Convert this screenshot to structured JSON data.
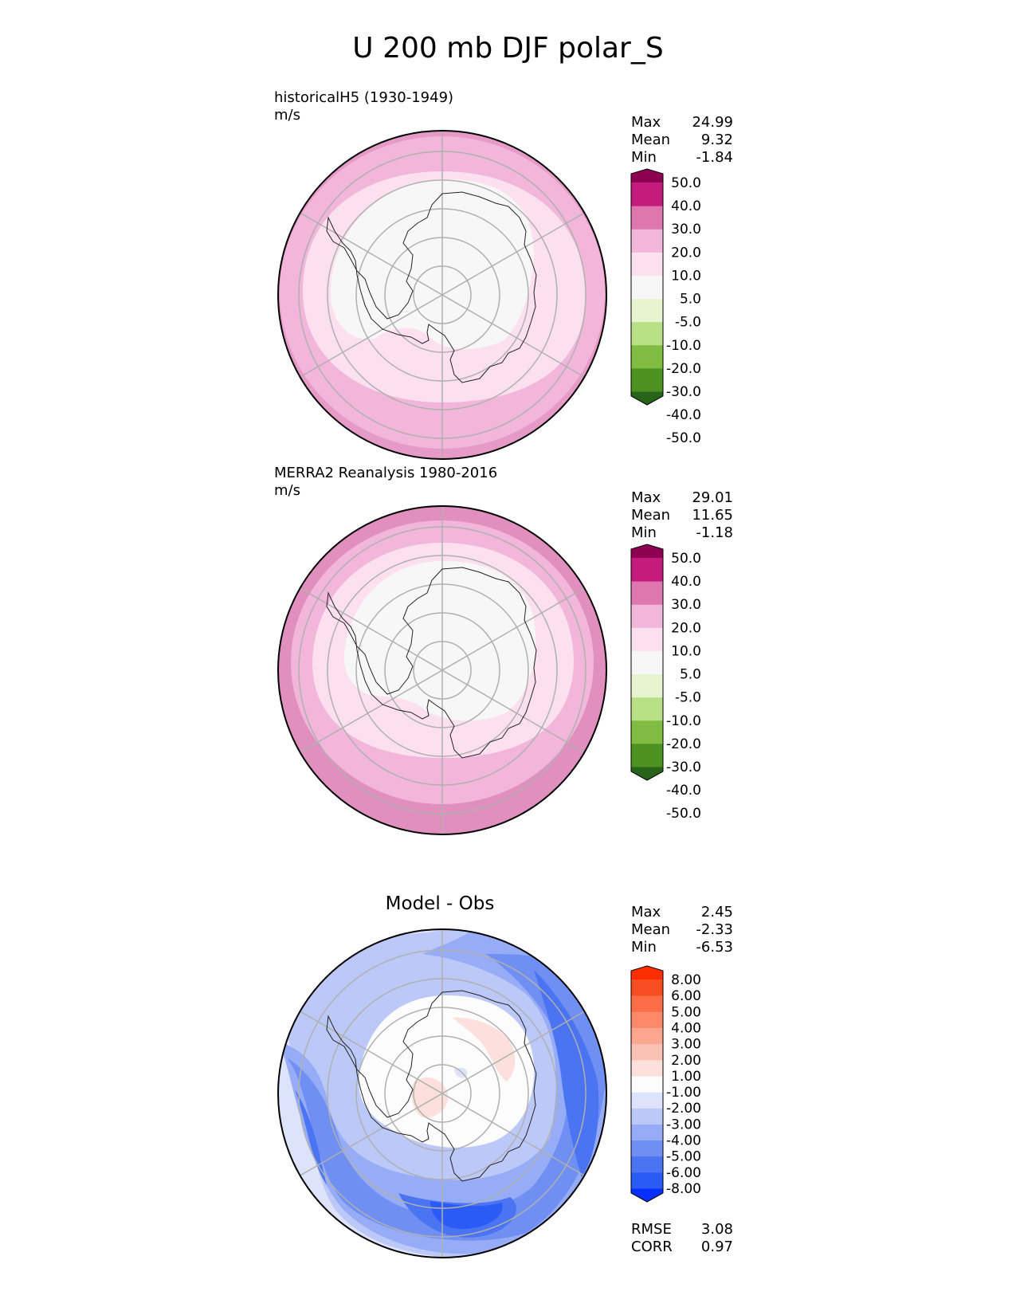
{
  "figure": {
    "title": "U 200 mb DJF polar_S"
  },
  "panels": [
    {
      "label": "historicalH5 (1930-1949)",
      "units": "m/s",
      "stats": [
        {
          "label": "Max",
          "value": "24.99"
        },
        {
          "label": "Mean",
          "value": "9.32"
        },
        {
          "label": "Min",
          "value": "-1.84"
        }
      ],
      "colorbar": {
        "colors": [
          "#276419",
          "#4d9221",
          "#7fbc41",
          "#b8e186",
          "#e6f5d0",
          "#f7f7f7",
          "#fde0ef",
          "#f1b6da",
          "#de77ae",
          "#c51b7d",
          "#8e0152"
        ],
        "ticks": [
          "50.0",
          "40.0",
          "30.0",
          "20.0",
          "10.0",
          "5.0",
          "-5.0",
          "-10.0",
          "-20.0",
          "-30.0",
          "-40.0",
          "-50.0"
        ]
      }
    },
    {
      "label": "MERRA2 Reanalysis 1980-2016",
      "units": "m/s",
      "stats": [
        {
          "label": "Max",
          "value": "29.01"
        },
        {
          "label": "Mean",
          "value": "11.65"
        },
        {
          "label": "Min",
          "value": "-1.18"
        }
      ],
      "colorbar": {
        "colors": [
          "#276419",
          "#4d9221",
          "#7fbc41",
          "#b8e186",
          "#e6f5d0",
          "#f7f7f7",
          "#fde0ef",
          "#f1b6da",
          "#de77ae",
          "#c51b7d",
          "#8e0152"
        ],
        "ticks": [
          "50.0",
          "40.0",
          "30.0",
          "20.0",
          "10.0",
          "5.0",
          "-5.0",
          "-10.0",
          "-20.0",
          "-30.0",
          "-40.0",
          "-50.0"
        ]
      }
    },
    {
      "title": "Model - Obs",
      "stats": [
        {
          "label": "Max",
          "value": "2.45"
        },
        {
          "label": "Mean",
          "value": "-2.33"
        },
        {
          "label": "Min",
          "value": "-6.53"
        }
      ],
      "extra_stats": [
        {
          "label": "RMSE",
          "value": "3.08"
        },
        {
          "label": "CORR",
          "value": "0.97"
        }
      ],
      "colorbar": {
        "colors": [
          "#0530ff",
          "#2a5bf5",
          "#4a74f2",
          "#6f8ff3",
          "#97acf6",
          "#bcc9f8",
          "#dde3fb",
          "#fcfcfc",
          "#fde0db",
          "#fcc1b5",
          "#fca58f",
          "#fc8a6a",
          "#fb6e48",
          "#fa4e22",
          "#fc2d00"
        ],
        "ticks": [
          "8.00",
          "6.00",
          "5.00",
          "4.00",
          "3.00",
          "2.00",
          "1.00",
          "-1.00",
          "-2.00",
          "-3.00",
          "-4.00",
          "-5.00",
          "-6.00",
          "-8.00"
        ]
      }
    }
  ]
}
